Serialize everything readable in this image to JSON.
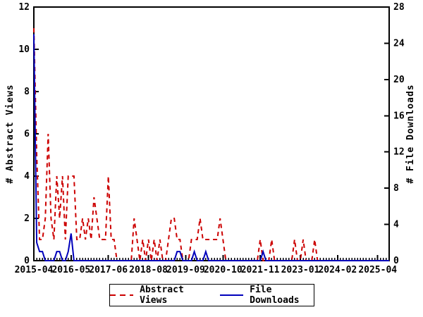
{
  "colors": {
    "background": "#ffffff",
    "axis": "#000000",
    "text": "#000000",
    "abstract_views": "#cc0000",
    "file_downloads": "#0000bb"
  },
  "chart_data": {
    "type": "line",
    "title": "",
    "grid": false,
    "x_axis": {
      "start_month": "2015-04",
      "months_total": 125,
      "tick_months": [
        0,
        13,
        26,
        40,
        53,
        66,
        79,
        93,
        106,
        120
      ],
      "tick_labels": [
        "2015-04",
        "2016-05",
        "2017-06",
        "2018-08",
        "2019-09",
        "2020-10",
        "2021-11",
        "2023-01",
        "2024-02",
        "2025-04"
      ]
    },
    "y_left": {
      "label": "# Abstract Views",
      "min": 0,
      "max": 12,
      "tick_step": 2
    },
    "y_right": {
      "label": "# File Downloads",
      "min": 0,
      "max": 28,
      "tick_step": 4
    },
    "legend": {
      "position": "bottom-center"
    },
    "series": [
      {
        "name": "Abstract Views",
        "axis": "left",
        "color": "#cc0000",
        "style": "dashed",
        "values": [
          11,
          5,
          1,
          1,
          2,
          6,
          2,
          1,
          4,
          2,
          4,
          1,
          4,
          4,
          4,
          1,
          1,
          2,
          1,
          2,
          1,
          3,
          2,
          1,
          1,
          1,
          4,
          1,
          1,
          0,
          0,
          0,
          0,
          0,
          0,
          2,
          1,
          0,
          1,
          0,
          1,
          0,
          1,
          0,
          1,
          0,
          0,
          1,
          2,
          2,
          1,
          1,
          0,
          0,
          0,
          1,
          1,
          1,
          2,
          1,
          1,
          1,
          1,
          1,
          1,
          2,
          1,
          0,
          0,
          0,
          0,
          0,
          0,
          0,
          0,
          0,
          0,
          0,
          0,
          1,
          0,
          0,
          0,
          1,
          0,
          0,
          0,
          0,
          0,
          0,
          0,
          1,
          0,
          0,
          1,
          0,
          0,
          0,
          1,
          0,
          0,
          0,
          0,
          0,
          0,
          0,
          0,
          0,
          0,
          0,
          0,
          0,
          0,
          0,
          0,
          0,
          0,
          0,
          0,
          0,
          0,
          0,
          0,
          0,
          0
        ]
      },
      {
        "name": "File Downloads",
        "axis": "right",
        "color": "#0000bb",
        "style": "solid",
        "values": [
          25,
          2,
          1,
          1,
          0,
          0,
          0,
          0,
          1,
          1,
          0,
          0,
          1,
          3,
          0,
          0,
          0,
          0,
          0,
          0,
          0,
          0,
          0,
          0,
          0,
          0,
          0,
          0,
          0,
          0,
          0,
          0,
          0,
          0,
          0,
          0,
          0,
          0,
          0,
          0,
          0,
          0,
          0,
          0,
          0,
          0,
          0,
          0,
          0,
          0,
          1,
          1,
          0,
          0,
          0,
          0,
          1,
          0,
          0,
          0,
          1,
          0,
          0,
          0,
          0,
          0,
          0,
          0,
          0,
          0,
          0,
          0,
          0,
          0,
          0,
          0,
          0,
          0,
          0,
          0,
          1,
          0,
          0,
          0,
          0,
          0,
          0,
          0,
          0,
          0,
          0,
          0,
          0,
          0,
          0,
          0,
          0,
          0,
          0,
          0,
          0,
          0,
          0,
          0,
          0,
          0,
          0,
          0,
          0,
          0,
          0,
          0,
          0,
          0,
          0,
          0,
          0,
          0,
          0,
          0,
          0,
          0,
          0,
          0,
          0
        ]
      }
    ]
  }
}
